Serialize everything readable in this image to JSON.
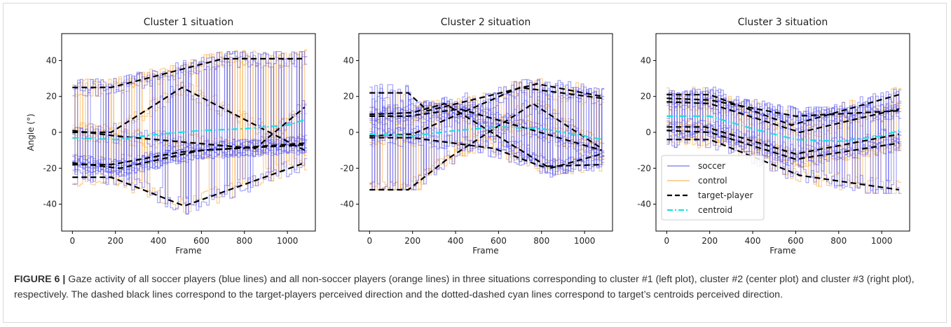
{
  "caption": {
    "label": "FIGURE 6 |",
    "text": " Gaze activity of all soccer players (blue lines) and all non-soccer players (orange lines) in three situations corresponding to cluster #1 (left plot), cluster #2 (center plot) and cluster #3 (right plot), respectively. The dashed black lines correspond to the target-players perceived direction and the dotted-dashed cyan lines correspond to target’s centroids perceived direction."
  },
  "colors": {
    "soccer": "#5b5bf0",
    "control": "#f5a840",
    "target": "#000000",
    "centroid": "#19e0e6"
  },
  "legend": {
    "placement": "lower-left of third plot",
    "entries": [
      {
        "label": "soccer",
        "style": "soccer"
      },
      {
        "label": "control",
        "style": "control"
      },
      {
        "label": "target-player",
        "style": "target"
      },
      {
        "label": "centroid",
        "style": "centroid"
      }
    ]
  },
  "chart_data": [
    {
      "type": "line",
      "title": "Cluster 1 situation",
      "xlabel": "Frame",
      "ylabel": "Angle (°)",
      "xlim": [
        -50,
        1130
      ],
      "ylim": [
        -55,
        55
      ],
      "xticks": [
        0,
        200,
        400,
        600,
        800,
        1000
      ],
      "yticks": [
        -40,
        -20,
        0,
        20,
        40
      ],
      "grid": false,
      "target_player": [
        {
          "x": [
            0,
            180,
            700,
            1080
          ],
          "y": [
            25,
            25,
            41,
            41
          ]
        },
        {
          "x": [
            0,
            180,
            520,
            1080
          ],
          "y": [
            -25,
            -25,
            -41,
            -17
          ]
        },
        {
          "x": [
            0,
            180,
            510,
            1080
          ],
          "y": [
            0,
            0,
            25,
            -10
          ]
        },
        {
          "x": [
            0,
            180,
            500,
            1080
          ],
          "y": [
            -18,
            -18,
            -11,
            -6
          ]
        },
        {
          "x": [
            0,
            220,
            600,
            1080
          ],
          "y": [
            -17,
            -20,
            -10,
            -7
          ]
        },
        {
          "x": [
            0,
            200,
            850,
            1080
          ],
          "y": [
            1,
            -2,
            -9,
            14
          ]
        }
      ],
      "centroid": {
        "x": [
          0,
          200,
          400,
          600,
          800,
          1000,
          1080
        ],
        "y": [
          -3,
          -4,
          -1,
          1,
          2,
          4,
          7
        ]
      },
      "soccer_range": [
        -48,
        45
      ],
      "control_range": [
        -52,
        52
      ]
    },
    {
      "type": "line",
      "title": "Cluster 2 situation",
      "xlabel": "Frame",
      "ylabel": "",
      "xlim": [
        -50,
        1130
      ],
      "ylim": [
        -55,
        55
      ],
      "xticks": [
        0,
        200,
        400,
        600,
        800,
        1000
      ],
      "yticks": [
        -40,
        -20,
        0,
        20,
        40
      ],
      "grid": false,
      "target_player": [
        {
          "x": [
            0,
            180,
            360,
            760,
            1080
          ],
          "y": [
            -32,
            -32,
            -15,
            16,
            -9
          ]
        },
        {
          "x": [
            0,
            200,
            580,
            800,
            1080
          ],
          "y": [
            -3,
            -3,
            -9,
            -19,
            -18
          ]
        },
        {
          "x": [
            0,
            180,
            270,
            780,
            1080
          ],
          "y": [
            22,
            22,
            12,
            27,
            20
          ]
        },
        {
          "x": [
            0,
            200,
            350,
            840,
            1080
          ],
          "y": [
            10,
            11,
            16,
            -20,
            -12
          ]
        },
        {
          "x": [
            0,
            180,
            420,
            1080
          ],
          "y": [
            9,
            9,
            13,
            -10
          ]
        },
        {
          "x": [
            0,
            200,
            700,
            1080
          ],
          "y": [
            -2,
            -1,
            25,
            19
          ]
        }
      ],
      "centroid": {
        "x": [
          0,
          200,
          400,
          600,
          800,
          1000,
          1080
        ],
        "y": [
          -1,
          -2,
          1,
          3,
          2,
          -2,
          -4
        ]
      },
      "soccer_range": [
        -32,
        32
      ],
      "control_range": [
        -32,
        32
      ]
    },
    {
      "type": "line",
      "title": "Cluster 3 situation",
      "xlabel": "Frame",
      "ylabel": "",
      "xlim": [
        -50,
        1130
      ],
      "ylim": [
        -55,
        55
      ],
      "xticks": [
        0,
        200,
        400,
        600,
        800,
        1000
      ],
      "yticks": [
        -40,
        -20,
        0,
        20,
        40
      ],
      "grid": false,
      "target_player": [
        {
          "x": [
            0,
            200,
            580,
            1080
          ],
          "y": [
            21,
            21,
            4,
            21
          ]
        },
        {
          "x": [
            0,
            200,
            600,
            1080
          ],
          "y": [
            19,
            18,
            9,
            12
          ]
        },
        {
          "x": [
            0,
            180,
            600,
            1080
          ],
          "y": [
            3,
            3,
            -12,
            -1
          ]
        },
        {
          "x": [
            0,
            200,
            620,
            1080
          ],
          "y": [
            -4,
            -4,
            -24,
            -32
          ]
        },
        {
          "x": [
            0,
            200,
            600,
            1080
          ],
          "y": [
            1,
            0,
            -15,
            -6
          ]
        },
        {
          "x": [
            0,
            200,
            620,
            1080
          ],
          "y": [
            17,
            16,
            0,
            13
          ]
        }
      ],
      "centroid": {
        "x": [
          0,
          200,
          400,
          600,
          800,
          1000,
          1080
        ],
        "y": [
          9,
          9,
          2,
          -4,
          -5,
          -2,
          1
        ]
      },
      "soccer_range": [
        -34,
        26
      ],
      "control_range": [
        -34,
        28
      ]
    }
  ]
}
